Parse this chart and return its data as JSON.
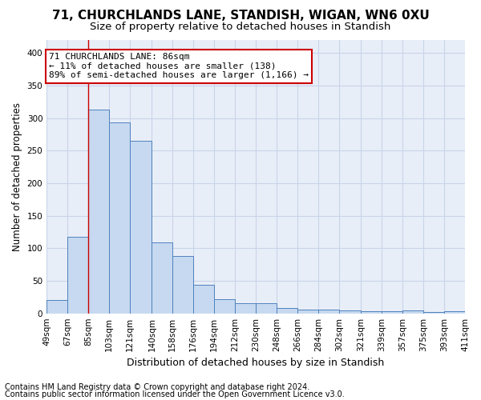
{
  "title1": "71, CHURCHLANDS LANE, STANDISH, WIGAN, WN6 0XU",
  "title2": "Size of property relative to detached houses in Standish",
  "xlabel": "Distribution of detached houses by size in Standish",
  "ylabel": "Number of detached properties",
  "footnote1": "Contains HM Land Registry data © Crown copyright and database right 2024.",
  "footnote2": "Contains public sector information licensed under the Open Government Licence v3.0.",
  "annotation_line1": "71 CHURCHLANDS LANE: 86sqm",
  "annotation_line2": "← 11% of detached houses are smaller (138)",
  "annotation_line3": "89% of semi-detached houses are larger (1,166) →",
  "bar_left_edges": [
    49,
    67,
    85,
    103,
    121,
    140,
    158,
    176,
    194,
    212,
    230,
    248,
    266,
    284,
    302,
    321,
    339,
    357,
    375,
    393
  ],
  "bar_widths": [
    18,
    18,
    18,
    18,
    19,
    18,
    18,
    18,
    18,
    18,
    18,
    18,
    18,
    18,
    19,
    18,
    18,
    18,
    18,
    18
  ],
  "bar_heights": [
    20,
    118,
    313,
    293,
    265,
    109,
    88,
    44,
    22,
    16,
    16,
    8,
    6,
    6,
    5,
    3,
    3,
    5,
    2,
    3
  ],
  "tick_labels": [
    "49sqm",
    "67sqm",
    "85sqm",
    "103sqm",
    "121sqm",
    "140sqm",
    "158sqm",
    "176sqm",
    "194sqm",
    "212sqm",
    "230sqm",
    "248sqm",
    "266sqm",
    "284sqm",
    "302sqm",
    "321sqm",
    "339sqm",
    "357sqm",
    "375sqm",
    "393sqm",
    "411sqm"
  ],
  "bar_color": "#c6d9f0",
  "bar_edge_color": "#4f81bd",
  "vline_color": "#cc0000",
  "vline_x": 85,
  "xlim": [
    49,
    411
  ],
  "ylim": [
    0,
    420
  ],
  "yticks": [
    0,
    50,
    100,
    150,
    200,
    250,
    300,
    350,
    400
  ],
  "grid_color": "#c8d4e8",
  "bg_color": "#e8eef8",
  "annotation_box_facecolor": "#ffffff",
  "annotation_box_edgecolor": "#cc0000",
  "title1_fontsize": 11,
  "title2_fontsize": 9.5,
  "ylabel_fontsize": 8.5,
  "xlabel_fontsize": 9,
  "tick_fontsize": 7.5,
  "annotation_fontsize": 8,
  "footnote_fontsize": 7
}
